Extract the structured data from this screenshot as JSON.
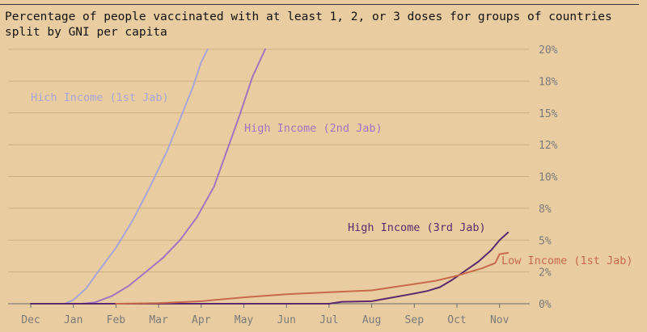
{
  "title": "Percentage of people vaccinated with at least 1, 2, or 3 doses for groups of countries split by GNI per capita",
  "chart_data": {
    "type": "line",
    "xlabel": "",
    "ylabel": "",
    "x_ticks": [
      "Dec",
      "Jan",
      "Feb",
      "Mar",
      "Apr",
      "May",
      "Jun",
      "Jul",
      "Aug",
      "Sep",
      "Oct",
      "Nov"
    ],
    "y_ticks": [
      "0%",
      "2%",
      "5%",
      "8%",
      "10%",
      "12%",
      "15%",
      "18%",
      "20%"
    ],
    "ylim": [
      0,
      20
    ],
    "xlim": [
      0,
      11.6
    ],
    "grid": "horizontal",
    "y_axis_side": "right",
    "series": [
      {
        "name": "Hich Income (1st Jab)",
        "color": "#a7a5d8",
        "x": [
          0,
          0.8,
          1.0,
          1.3,
          1.6,
          2.0,
          2.4,
          2.8,
          3.2,
          3.5,
          3.8,
          4.0,
          4.15
        ],
        "y": [
          0,
          0,
          0.3,
          1.2,
          2.6,
          4.4,
          6.6,
          9.2,
          12.0,
          14.5,
          17.0,
          19.0,
          20.0
        ]
      },
      {
        "name": "High Income (2nd Jab)",
        "color": "#a274c0",
        "x": [
          0.8,
          1.2,
          1.5,
          1.9,
          2.3,
          2.7,
          3.1,
          3.5,
          3.9,
          4.3,
          4.6,
          4.9,
          5.2,
          5.5
        ],
        "y": [
          0,
          0,
          0.1,
          0.6,
          1.4,
          2.5,
          3.6,
          5.0,
          6.8,
          9.2,
          12.0,
          14.8,
          17.8,
          20.0
        ]
      },
      {
        "name": "High Income (3rd Jab)",
        "color": "#5b2a6e",
        "x": [
          0,
          7.0,
          7.3,
          8.0,
          8.5,
          9.0,
          9.3,
          9.6,
          9.9,
          10.2,
          10.5,
          10.8,
          11.0,
          11.2
        ],
        "y": [
          0,
          0,
          0.15,
          0.2,
          0.5,
          0.8,
          1.0,
          1.3,
          1.9,
          2.6,
          3.3,
          4.2,
          5.0,
          5.6
        ]
      },
      {
        "name": "Low Income (1st Jab)",
        "color": "#c86a4b",
        "x": [
          2.0,
          3.0,
          4.0,
          5.0,
          6.0,
          7.0,
          8.0,
          8.5,
          9.0,
          9.5,
          10.0,
          10.3,
          10.6,
          10.9,
          11.0,
          11.2
        ],
        "y": [
          0,
          0.05,
          0.2,
          0.5,
          0.75,
          0.9,
          1.05,
          1.3,
          1.55,
          1.8,
          2.2,
          2.5,
          2.8,
          3.2,
          3.9,
          4.0
        ]
      }
    ]
  }
}
